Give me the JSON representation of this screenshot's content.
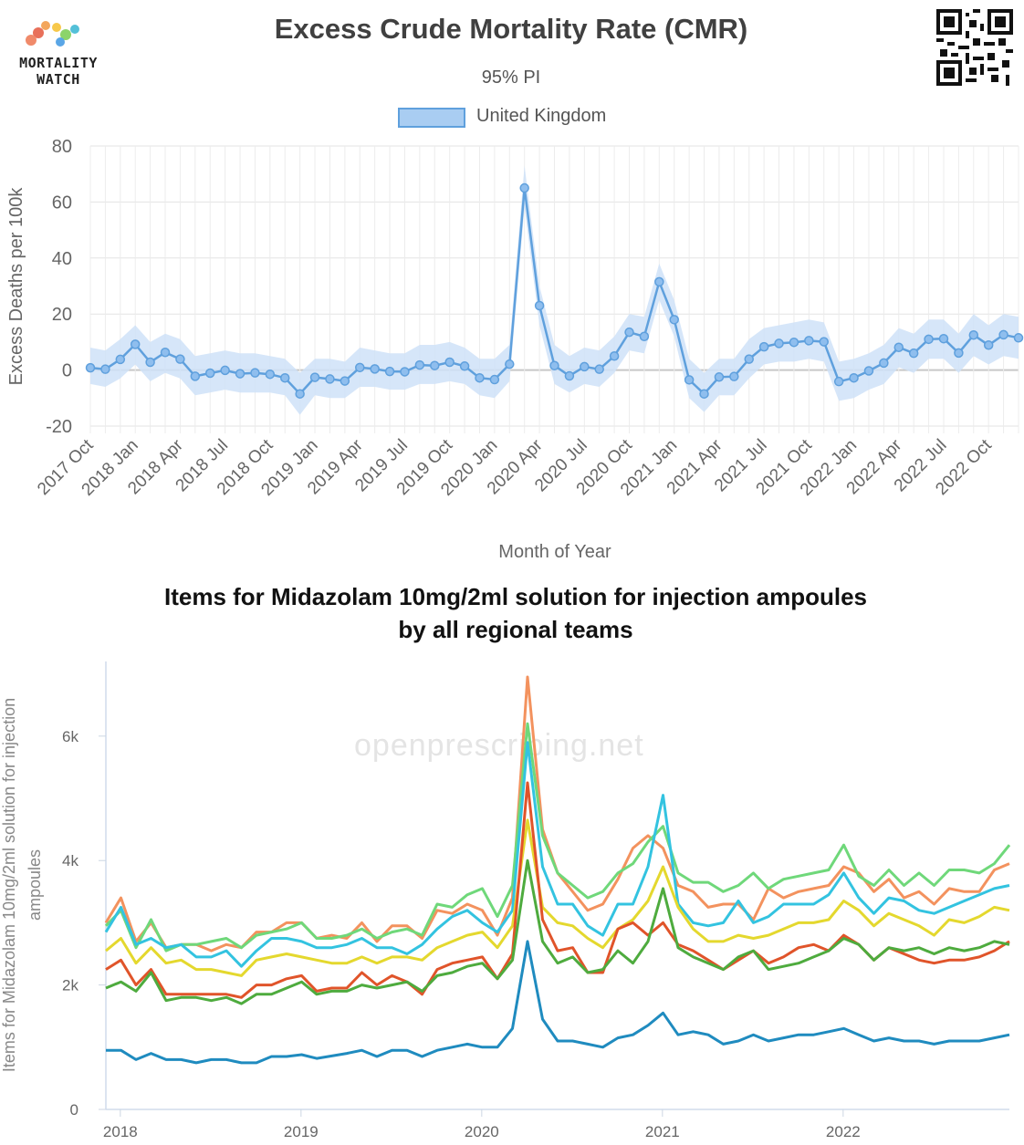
{
  "logo": {
    "line1": "MORTALITY",
    "line2": "WATCH"
  },
  "chart_data": [
    {
      "type": "line",
      "title": "Excess Crude Mortality Rate (CMR)",
      "subtitle": "95% PI",
      "xlabel": "Month of Year",
      "ylabel": "Excess Deaths per 100k",
      "ylim": [
        -20,
        80
      ],
      "yticks": [
        -20,
        0,
        20,
        40,
        60,
        80
      ],
      "grid": true,
      "legend": "top-center",
      "xtick_labels": [
        "2017 Oct",
        "2018 Jan",
        "2018 Apr",
        "2018 Jul",
        "2018 Oct",
        "2019 Jan",
        "2019 Apr",
        "2019 Jul",
        "2019 Oct",
        "2020 Jan",
        "2020 Apr",
        "2020 Jul",
        "2020 Oct",
        "2021 Jan",
        "2021 Apr",
        "2021 Jul",
        "2021 Oct",
        "2022 Jan",
        "2022 Apr",
        "2022 Jul",
        "2022 Oct"
      ],
      "x": [
        "2017 Oct",
        "2017 Nov",
        "2017 Dec",
        "2018 Jan",
        "2018 Feb",
        "2018 Mar",
        "2018 Apr",
        "2018 May",
        "2018 Jun",
        "2018 Jul",
        "2018 Aug",
        "2018 Sep",
        "2018 Oct",
        "2018 Nov",
        "2018 Dec",
        "2019 Jan",
        "2019 Feb",
        "2019 Mar",
        "2019 Apr",
        "2019 May",
        "2019 Jun",
        "2019 Jul",
        "2019 Aug",
        "2019 Sep",
        "2019 Oct",
        "2019 Nov",
        "2019 Dec",
        "2020 Jan",
        "2020 Feb",
        "2020 Mar",
        "2020 Apr",
        "2020 May",
        "2020 Jun",
        "2020 Jul",
        "2020 Aug",
        "2020 Sep",
        "2020 Oct",
        "2020 Nov",
        "2020 Dec",
        "2021 Jan",
        "2021 Feb",
        "2021 Mar",
        "2021 Apr",
        "2021 May",
        "2021 Jun",
        "2021 Jul",
        "2021 Aug",
        "2021 Sep",
        "2021 Oct",
        "2021 Nov",
        "2021 Dec",
        "2022 Jan",
        "2022 Feb",
        "2022 Mar",
        "2022 Apr",
        "2022 May",
        "2022 Jun",
        "2022 Jul",
        "2022 Aug",
        "2022 Sep",
        "2022 Oct",
        "2022 Nov",
        "2022 Dec"
      ],
      "series": [
        {
          "name": "United Kingdom",
          "color": "#5fa0dd",
          "values": [
            0.8,
            0.3,
            3.8,
            9.2,
            2.8,
            6.3,
            3.9,
            -2.2,
            -1.1,
            -0.1,
            -1.3,
            -1.0,
            -1.5,
            -2.8,
            -8.5,
            -2.6,
            -3.2,
            -3.9,
            0.9,
            0.4,
            -0.5,
            -0.6,
            1.8,
            1.6,
            2.8,
            1.4,
            -2.8,
            -3.4,
            2.1,
            65.0,
            23.0,
            1.6,
            -2.1,
            1.2,
            0.3,
            5.0,
            13.5,
            12.0,
            31.5,
            18.0,
            -3.5,
            -8.5,
            -2.5,
            -2.3,
            3.9,
            8.3,
            9.5,
            9.9,
            10.5,
            10.1,
            -4.1,
            -2.8,
            -0.3,
            2.5,
            8.1,
            6.0,
            11.0,
            11.2,
            6.1,
            12.5,
            8.9,
            12.6,
            11.5
          ],
          "lower": [
            -5,
            -6,
            -3,
            2,
            -4,
            -1,
            -3,
            -9,
            -8,
            -7,
            -8,
            -8,
            -8,
            -9,
            -16,
            -9,
            -10,
            -10,
            -6,
            -6,
            -7,
            -7,
            -5,
            -5,
            -4,
            -5,
            -9,
            -10,
            -4,
            58,
            16,
            -5,
            -8,
            -5,
            -6,
            -1,
            7,
            6,
            25,
            12,
            -10,
            -15,
            -9,
            -9,
            -3,
            2,
            3,
            3,
            4,
            3,
            -11,
            -10,
            -7,
            -5,
            1,
            -1,
            4,
            4,
            -1,
            5,
            2,
            5,
            4
          ],
          "upper": [
            8,
            7,
            11,
            16,
            10,
            13,
            11,
            5,
            6,
            7,
            6,
            6,
            5,
            4,
            -1,
            4,
            4,
            3,
            8,
            7,
            6,
            6,
            9,
            9,
            10,
            8,
            4,
            4,
            9,
            73,
            30,
            9,
            5,
            8,
            7,
            12,
            20,
            19,
            38,
            25,
            4,
            -1,
            4,
            4,
            11,
            15,
            16,
            17,
            18,
            17,
            3,
            4,
            6,
            9,
            15,
            13,
            18,
            18,
            13,
            20,
            16,
            20,
            19
          ]
        }
      ]
    },
    {
      "type": "line",
      "title": "Items for Midazolam 10mg/2ml solution for injection ampoules by all regional teams",
      "title_line1": "Items for Midazolam 10mg/2ml solution for injection ampoules",
      "title_line2": "by all regional teams",
      "ylabel_line1": "Items for Midazolam 10mg/2ml solution for injection",
      "ylabel_line2": "ampoules",
      "watermark": "openprescribing.net",
      "xlim": [
        2017.92,
        2022.92
      ],
      "ylim": [
        0,
        7200
      ],
      "ytick_values": [
        0,
        2000,
        4000,
        6000
      ],
      "ytick_labels": [
        "0",
        "2k",
        "4k",
        "6k"
      ],
      "xtick_values": [
        2018,
        2019,
        2020,
        2021,
        2022
      ],
      "xtick_labels": [
        "2018",
        "2019",
        "2020",
        "2021",
        "2022"
      ],
      "grid": false,
      "series": [
        {
          "color": "#f3925e",
          "values": [
            3000,
            3400,
            2700,
            3000,
            2600,
            2650,
            2650,
            2550,
            2650,
            2600,
            2850,
            2850,
            3000,
            3000,
            2750,
            2800,
            2750,
            3000,
            2700,
            2950,
            2950,
            2750,
            3200,
            3150,
            3300,
            3200,
            2800,
            3400,
            6950,
            4500,
            3800,
            3500,
            3200,
            3300,
            3700,
            4200,
            4400,
            4200,
            3600,
            3500,
            3250,
            3300,
            3300,
            3050,
            3550,
            3400,
            3500,
            3550,
            3600,
            3900,
            3800,
            3500,
            3700,
            3400,
            3500,
            3300,
            3550,
            3500,
            3500,
            3850,
            3950
          ]
        },
        {
          "color": "#6fd87a",
          "values": [
            2950,
            3200,
            2600,
            3050,
            2550,
            2650,
            2650,
            2700,
            2750,
            2600,
            2800,
            2850,
            2900,
            3000,
            2750,
            2750,
            2800,
            2900,
            2750,
            2850,
            2900,
            2800,
            3300,
            3250,
            3450,
            3550,
            3100,
            3600,
            6200,
            4400,
            3800,
            3600,
            3400,
            3500,
            3800,
            3950,
            4300,
            4550,
            3800,
            3650,
            3650,
            3500,
            3600,
            3800,
            3550,
            3700,
            3750,
            3800,
            3850,
            4250,
            3750,
            3600,
            3850,
            3600,
            3800,
            3600,
            3850,
            3850,
            3800,
            3950,
            4250
          ]
        },
        {
          "color": "#33c3e0",
          "values": [
            2850,
            3250,
            2650,
            2750,
            2600,
            2650,
            2450,
            2450,
            2550,
            2300,
            2550,
            2750,
            2750,
            2700,
            2600,
            2600,
            2650,
            2750,
            2600,
            2600,
            2500,
            2650,
            2900,
            3100,
            3200,
            3000,
            2850,
            3200,
            5900,
            3900,
            3300,
            3300,
            2950,
            2800,
            3300,
            3300,
            3900,
            5050,
            3300,
            3000,
            2950,
            3000,
            3350,
            3000,
            3100,
            3300,
            3300,
            3300,
            3450,
            3800,
            3400,
            3150,
            3400,
            3350,
            3200,
            3150,
            3250,
            3350,
            3450,
            3550,
            3600
          ]
        },
        {
          "color": "#e4d82e",
          "values": [
            2550,
            2750,
            2350,
            2600,
            2350,
            2400,
            2250,
            2250,
            2200,
            2150,
            2400,
            2450,
            2500,
            2450,
            2400,
            2350,
            2350,
            2450,
            2350,
            2450,
            2450,
            2400,
            2600,
            2700,
            2800,
            2850,
            2600,
            2950,
            4650,
            3250,
            3000,
            2950,
            2750,
            2600,
            2900,
            3050,
            3350,
            3900,
            3250,
            2900,
            2700,
            2700,
            2800,
            2750,
            2800,
            2900,
            3000,
            3000,
            3050,
            3350,
            3200,
            2950,
            3150,
            3050,
            2950,
            2800,
            3050,
            3000,
            3100,
            3250,
            3200
          ]
        },
        {
          "color": "#e0542a",
          "values": [
            2250,
            2400,
            2000,
            2250,
            1850,
            1850,
            1850,
            1850,
            1850,
            1800,
            2000,
            2000,
            2100,
            2150,
            1900,
            1950,
            1950,
            2200,
            2000,
            2150,
            2050,
            1850,
            2250,
            2350,
            2400,
            2450,
            2100,
            2500,
            5250,
            3050,
            2550,
            2600,
            2200,
            2200,
            2900,
            3000,
            2800,
            3000,
            2650,
            2550,
            2400,
            2250,
            2400,
            2550,
            2350,
            2450,
            2600,
            2650,
            2550,
            2800,
            2650,
            2400,
            2600,
            2500,
            2400,
            2350,
            2400,
            2400,
            2450,
            2550,
            2700
          ]
        },
        {
          "color": "#4eab3e",
          "values": [
            1950,
            2050,
            1900,
            2200,
            1750,
            1800,
            1800,
            1750,
            1800,
            1700,
            1850,
            1850,
            1950,
            2050,
            1850,
            1900,
            1900,
            2000,
            1950,
            2000,
            2050,
            1900,
            2150,
            2200,
            2300,
            2350,
            2100,
            2400,
            4000,
            2700,
            2350,
            2450,
            2200,
            2250,
            2550,
            2350,
            2700,
            3550,
            2600,
            2450,
            2350,
            2250,
            2450,
            2550,
            2250,
            2300,
            2350,
            2450,
            2550,
            2750,
            2650,
            2400,
            2600,
            2550,
            2600,
            2500,
            2600,
            2550,
            2600,
            2700,
            2650
          ]
        },
        {
          "color": "#1f8bbf",
          "values": [
            950,
            950,
            800,
            900,
            800,
            800,
            750,
            800,
            800,
            750,
            750,
            850,
            850,
            880,
            820,
            860,
            900,
            950,
            850,
            950,
            950,
            850,
            950,
            1000,
            1050,
            1000,
            1000,
            1300,
            2700,
            1450,
            1100,
            1100,
            1050,
            1000,
            1150,
            1200,
            1350,
            1550,
            1200,
            1250,
            1200,
            1050,
            1100,
            1200,
            1100,
            1150,
            1200,
            1200,
            1250,
            1300,
            1200,
            1100,
            1150,
            1100,
            1100,
            1050,
            1100,
            1100,
            1100,
            1150,
            1200
          ]
        }
      ]
    }
  ]
}
